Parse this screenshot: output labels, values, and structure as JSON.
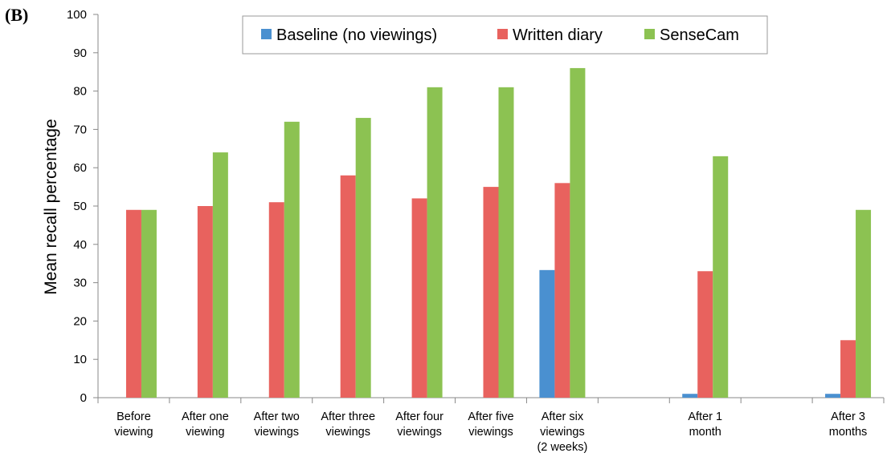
{
  "panel_label": "(B)",
  "colors": {
    "baseline": "#4a90d0",
    "written": "#e8625e",
    "sensecam": "#8cc252",
    "axis": "#888888"
  },
  "chart_data": {
    "type": "bar",
    "ylabel": "Mean recall percentage",
    "ylim": [
      0,
      100
    ],
    "yticks": [
      0,
      10,
      20,
      30,
      40,
      50,
      60,
      70,
      80,
      90,
      100
    ],
    "legend_position": "top-center",
    "categories": [
      [
        "Before",
        "viewing"
      ],
      [
        "After one",
        "viewing"
      ],
      [
        "After two",
        "viewings"
      ],
      [
        "After three",
        "viewings"
      ],
      [
        "After four",
        "viewings"
      ],
      [
        "After five",
        "viewings"
      ],
      [
        "After six",
        "viewings",
        "(2 weeks)"
      ],
      [],
      [
        "After 1",
        "month"
      ],
      [],
      [
        "After 3",
        "months"
      ]
    ],
    "series": [
      {
        "name": "Baseline (no viewings)",
        "color": "#4a90d0",
        "values": [
          null,
          null,
          null,
          null,
          null,
          null,
          33.3,
          null,
          1,
          null,
          1
        ]
      },
      {
        "name": "Written diary",
        "color": "#e8625e",
        "values": [
          49,
          50,
          51,
          58,
          52,
          55,
          56,
          null,
          33,
          null,
          15
        ]
      },
      {
        "name": "SenseCam",
        "color": "#8cc252",
        "values": [
          49,
          64,
          72,
          73,
          81,
          81,
          86,
          null,
          63,
          null,
          49
        ]
      }
    ]
  }
}
